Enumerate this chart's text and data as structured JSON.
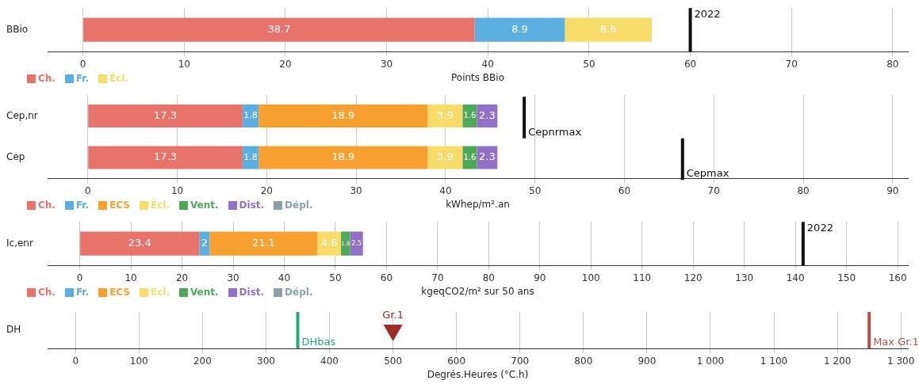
{
  "chart_data": [
    {
      "type": "bar",
      "orientation": "horizontal",
      "stacked": true,
      "categories": [
        "BBio"
      ],
      "series": [
        {
          "name": "Ch.",
          "color": "#e8736a",
          "values": [
            38.7
          ]
        },
        {
          "name": "Fr.",
          "color": "#5aaee0",
          "values": [
            8.9
          ]
        },
        {
          "name": "Écl.",
          "color": "#f8dc6a",
          "values": [
            8.6
          ]
        }
      ],
      "xlabel": "Points BBio",
      "xlim": [
        -3.5,
        81.5
      ],
      "xticks": [
        0,
        10,
        20,
        30,
        40,
        50,
        60,
        70,
        80
      ],
      "ref_lines": [
        {
          "axis": "x",
          "value": 60,
          "color": "#111111"
        }
      ],
      "annotations": [
        {
          "text": "2022",
          "x": 60,
          "y": "BBio"
        }
      ],
      "data_labels": true,
      "grid": "x",
      "legend": "bottom left"
    },
    {
      "type": "bar",
      "orientation": "horizontal",
      "stacked": true,
      "categories": [
        "Cep,nr",
        "Cep"
      ],
      "series": [
        {
          "name": "Ch.",
          "color": "#e8736a",
          "values": [
            17.3,
            17.3
          ]
        },
        {
          "name": "Fr.",
          "color": "#5aaee0",
          "values": [
            1.8,
            1.8
          ]
        },
        {
          "name": "ECS",
          "color": "#f8a030",
          "values": [
            18.9,
            18.9
          ]
        },
        {
          "name": "Écl.",
          "color": "#f8dc6a",
          "values": [
            3.9,
            3.9
          ]
        },
        {
          "name": "Vent.",
          "color": "#4fa85a",
          "values": [
            1.6,
            1.6
          ]
        },
        {
          "name": "Dist.",
          "color": "#9370c8",
          "values": [
            2.3,
            2.3
          ]
        },
        {
          "name": "Dépl.",
          "color": "#8aa0aa",
          "values": [
            null,
            null
          ]
        }
      ],
      "xlabel": "kWhep/m².an",
      "xlim": [
        -4.5,
        91.7
      ],
      "xticks": [
        0,
        10,
        20,
        30,
        40,
        50,
        60,
        70,
        80,
        90
      ],
      "ref_lines": [
        {
          "axis": "x",
          "value": 48.8,
          "label": "Cepnrmax",
          "color": "#111111"
        },
        {
          "axis": "x",
          "value": 66.5,
          "label": "Cepmax",
          "color": "#111111"
        }
      ],
      "data_labels": true,
      "grid": "x",
      "legend": "bottom left"
    },
    {
      "type": "bar",
      "orientation": "horizontal",
      "stacked": true,
      "categories": [
        "Ic,enr"
      ],
      "series": [
        {
          "name": "Ch.",
          "color": "#e8736a",
          "values": [
            23.4
          ]
        },
        {
          "name": "Fr.",
          "color": "#5aaee0",
          "values": [
            2
          ]
        },
        {
          "name": "ECS",
          "color": "#f8a030",
          "values": [
            21.1
          ]
        },
        {
          "name": "Écl.",
          "color": "#f8dc6a",
          "values": [
            4.6
          ]
        },
        {
          "name": "Vent.",
          "color": "#4fa85a",
          "values": [
            1.8
          ]
        },
        {
          "name": "Dist.",
          "color": "#9370c8",
          "values": [
            2.5
          ]
        },
        {
          "name": "Dépl.",
          "color": "#8aa0aa",
          "values": [
            null
          ]
        }
      ],
      "xlabel": "kgeqCO2/m² sur 50 ans",
      "xlim": [
        -6.3,
        162
      ],
      "xticks": [
        0,
        10,
        20,
        30,
        40,
        50,
        60,
        70,
        80,
        90,
        100,
        110,
        120,
        130,
        140,
        150,
        160
      ],
      "ref_lines": [
        {
          "axis": "x",
          "value": 141.5,
          "color": "#111111"
        }
      ],
      "annotations": [
        {
          "text": "2022",
          "x": 141.5,
          "y": "Ic,enr"
        }
      ],
      "data_labels": true,
      "grid": "x",
      "legend": "bottom left"
    },
    {
      "type": "scatter",
      "orientation": "horizontal",
      "categories": [
        "DH"
      ],
      "series": [
        {
          "name": "Gr.1",
          "color": "#9e2b25",
          "values": [
            500
          ]
        }
      ],
      "marker": "triangle",
      "xlabel": "Degrés.Heures (°C.h)",
      "xlim": [
        -44,
        1311
      ],
      "xticks": [
        0,
        100,
        200,
        300,
        400,
        500,
        600,
        700,
        800,
        900,
        {
          "value": 1000,
          "label": "1 000"
        },
        {
          "value": 1100,
          "label": "1 100"
        },
        {
          "value": 1200,
          "label": "1 200"
        },
        {
          "value": 1300,
          "label": "1 300"
        }
      ],
      "ref_lines": [
        {
          "axis": "x",
          "value": 350,
          "label": "DHbas",
          "color": "#2aa876"
        },
        {
          "axis": "x",
          "value": 1250,
          "label": "Max Gr.1",
          "color": "#b5524a"
        }
      ],
      "grid": "x"
    }
  ]
}
